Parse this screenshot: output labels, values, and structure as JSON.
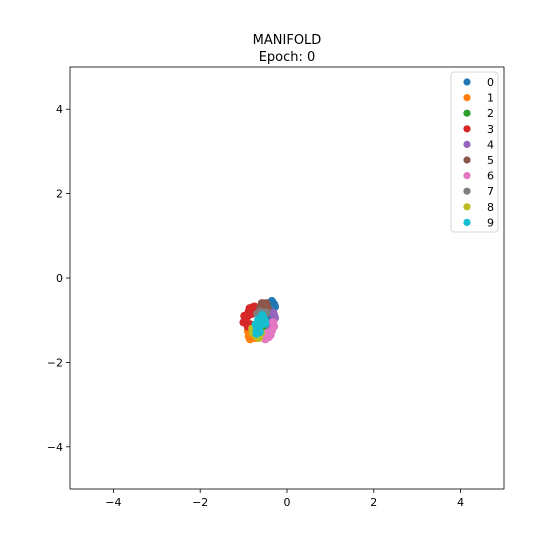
{
  "chart_data": {
    "type": "scatter",
    "title": "MANIFOLD",
    "subtitle": "Epoch: 0",
    "xlabel": "",
    "ylabel": "",
    "xlim": [
      -5,
      5
    ],
    "ylim": [
      -5,
      5
    ],
    "xticks": [
      -4,
      -2,
      0,
      2,
      4
    ],
    "yticks": [
      -4,
      -2,
      0,
      2,
      4
    ],
    "xtick_labels": [
      "−4",
      "−2",
      "0",
      "2",
      "4"
    ],
    "ytick_labels": [
      "−4",
      "−2",
      "0",
      "2",
      "4"
    ],
    "grid": false,
    "legend": "top-right",
    "series": [
      {
        "name": "0",
        "color": "#1f77b4",
        "points": [
          [
            -0.35,
            -0.55
          ],
          [
            -0.3,
            -0.62
          ],
          [
            -0.4,
            -0.7
          ],
          [
            -0.33,
            -0.78
          ],
          [
            -0.45,
            -0.85
          ],
          [
            -0.38,
            -0.92
          ],
          [
            -0.5,
            -0.75
          ],
          [
            -0.28,
            -0.68
          ],
          [
            -0.42,
            -1.0
          ],
          [
            -0.36,
            -0.6
          ]
        ]
      },
      {
        "name": "1",
        "color": "#ff7f0e",
        "points": [
          [
            -0.85,
            -1.45
          ],
          [
            -0.78,
            -1.35
          ],
          [
            -0.9,
            -1.25
          ],
          [
            -0.72,
            -1.42
          ],
          [
            -0.82,
            -1.15
          ],
          [
            -0.68,
            -1.3
          ],
          [
            -0.88,
            -1.38
          ],
          [
            -0.75,
            -1.22
          ]
        ]
      },
      {
        "name": "2",
        "color": "#2ca02c",
        "points": [
          [
            -0.62,
            -1.25
          ],
          [
            -0.55,
            -1.32
          ],
          [
            -0.7,
            -1.18
          ],
          [
            -0.5,
            -1.2
          ],
          [
            -0.65,
            -1.35
          ],
          [
            -0.58,
            -1.1
          ]
        ]
      },
      {
        "name": "3",
        "color": "#d62728",
        "points": [
          [
            -1.0,
            -1.05
          ],
          [
            -0.92,
            -0.92
          ],
          [
            -0.88,
            -0.8
          ],
          [
            -0.8,
            -0.7
          ],
          [
            -0.95,
            -0.98
          ],
          [
            -0.85,
            -1.1
          ],
          [
            -0.75,
            -0.68
          ],
          [
            -0.9,
            -1.15
          ],
          [
            -0.82,
            -0.85
          ],
          [
            -0.72,
            -0.78
          ],
          [
            -0.98,
            -0.9
          ],
          [
            -0.86,
            -0.72
          ]
        ]
      },
      {
        "name": "4",
        "color": "#9467bd",
        "points": [
          [
            -0.32,
            -0.82
          ],
          [
            -0.28,
            -0.95
          ],
          [
            -0.35,
            -1.05
          ],
          [
            -0.3,
            -0.88
          ],
          [
            -0.38,
            -1.12
          ]
        ]
      },
      {
        "name": "5",
        "color": "#8c564b",
        "points": [
          [
            -0.55,
            -0.65
          ],
          [
            -0.48,
            -0.6
          ],
          [
            -0.62,
            -0.72
          ],
          [
            -0.45,
            -0.7
          ],
          [
            -0.58,
            -0.6
          ],
          [
            -0.5,
            -0.78
          ]
        ]
      },
      {
        "name": "6",
        "color": "#e377c2",
        "points": [
          [
            -0.35,
            -1.25
          ],
          [
            -0.42,
            -1.4
          ],
          [
            -0.5,
            -1.45
          ],
          [
            -0.38,
            -1.35
          ],
          [
            -0.3,
            -1.15
          ],
          [
            -0.45,
            -1.3
          ],
          [
            -0.55,
            -1.38
          ],
          [
            -0.32,
            -1.05
          ]
        ]
      },
      {
        "name": "7",
        "color": "#7f7f7f",
        "points": [
          [
            -0.6,
            -0.8
          ],
          [
            -0.52,
            -0.9
          ],
          [
            -0.68,
            -0.85
          ],
          [
            -0.58,
            -0.95
          ],
          [
            -0.48,
            -0.82
          ]
        ]
      },
      {
        "name": "8",
        "color": "#bcbd22",
        "points": [
          [
            -0.78,
            -1.3
          ],
          [
            -0.7,
            -1.38
          ],
          [
            -0.65,
            -1.42
          ],
          [
            -0.8,
            -1.2
          ],
          [
            -0.6,
            -1.3
          ],
          [
            -0.72,
            -1.25
          ]
        ]
      },
      {
        "name": "9",
        "color": "#17becf",
        "points": [
          [
            -0.65,
            -1.2
          ],
          [
            -0.58,
            -1.1
          ],
          [
            -0.7,
            -1.25
          ],
          [
            -0.62,
            -1.0
          ],
          [
            -0.55,
            -0.95
          ],
          [
            -0.68,
            -1.15
          ],
          [
            -0.6,
            -1.05
          ],
          [
            -0.52,
            -1.0
          ],
          [
            -0.72,
            -1.1
          ],
          [
            -0.63,
            -1.28
          ],
          [
            -0.57,
            -0.88
          ],
          [
            -0.66,
            -0.98
          ],
          [
            -0.7,
            -1.32
          ],
          [
            -0.5,
            -1.08
          ]
        ]
      }
    ]
  }
}
